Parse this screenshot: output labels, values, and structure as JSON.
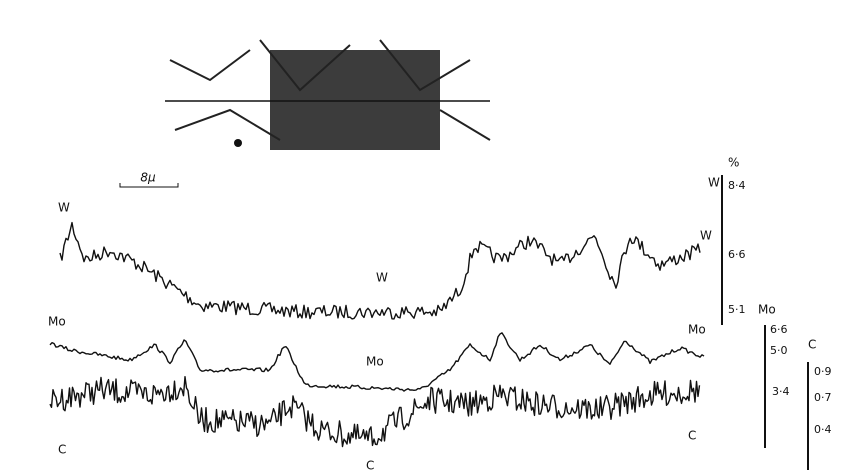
{
  "scale_bar": "8μ",
  "trace_labels": {
    "w": [
      "W",
      "W",
      "W"
    ],
    "mo": [
      "Mo",
      "Mo",
      "Mo"
    ],
    "c": [
      "C",
      "C",
      "C"
    ]
  },
  "scales": {
    "unit": "%",
    "w": {
      "name": "W",
      "ticks": [
        "8·4",
        "6·6",
        "5·1"
      ]
    },
    "mo": {
      "name": "Mo",
      "ticks": [
        "6·6",
        "5·0",
        "3·4"
      ]
    },
    "c": {
      "name": "C",
      "ticks": [
        "0·9",
        "0·7",
        "0·4"
      ]
    }
  }
}
